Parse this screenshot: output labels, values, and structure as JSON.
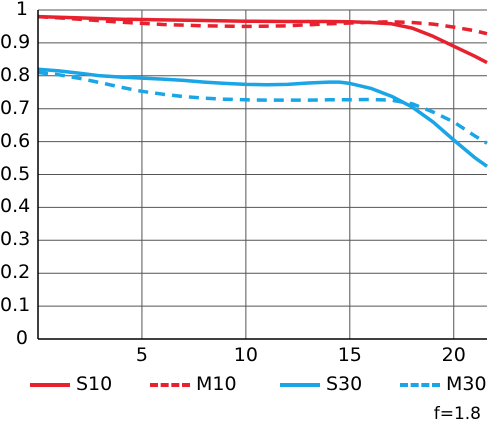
{
  "chart_data": {
    "type": "line",
    "xlim": [
      0,
      21.6
    ],
    "ylim": [
      0,
      1
    ],
    "grid": true,
    "legend_position": "bottom",
    "x_ticks": [
      "5",
      "10",
      "15",
      "20"
    ],
    "y_ticks": [
      "0",
      "0.1",
      "0.2",
      "0.3",
      "0.4",
      "0.5",
      "0.6",
      "0.7",
      "0.8",
      "0.9",
      "1"
    ],
    "series": [
      {
        "name": "S10",
        "color": "#e8212f",
        "style": "solid",
        "points": [
          [
            0,
            0.98
          ],
          [
            2,
            0.976
          ],
          [
            4,
            0.972
          ],
          [
            6,
            0.97
          ],
          [
            8,
            0.968
          ],
          [
            10,
            0.966
          ],
          [
            12,
            0.965
          ],
          [
            14,
            0.965
          ],
          [
            15,
            0.964
          ],
          [
            16,
            0.962
          ],
          [
            17,
            0.958
          ],
          [
            18,
            0.945
          ],
          [
            19,
            0.92
          ],
          [
            20,
            0.89
          ],
          [
            21,
            0.86
          ],
          [
            21.6,
            0.84
          ]
        ]
      },
      {
        "name": "M10",
        "color": "#e8212f",
        "style": "dashed",
        "points": [
          [
            0,
            0.98
          ],
          [
            2,
            0.972
          ],
          [
            4,
            0.963
          ],
          [
            6,
            0.956
          ],
          [
            8,
            0.952
          ],
          [
            10,
            0.95
          ],
          [
            12,
            0.952
          ],
          [
            14,
            0.958
          ],
          [
            16,
            0.963
          ],
          [
            17,
            0.964
          ],
          [
            18,
            0.962
          ],
          [
            19,
            0.957
          ],
          [
            20,
            0.948
          ],
          [
            21,
            0.937
          ],
          [
            21.6,
            0.928
          ]
        ]
      },
      {
        "name": "S30",
        "color": "#1aa5e6",
        "style": "solid",
        "points": [
          [
            0,
            0.82
          ],
          [
            1,
            0.815
          ],
          [
            2,
            0.808
          ],
          [
            3,
            0.8
          ],
          [
            4,
            0.796
          ],
          [
            5,
            0.793
          ],
          [
            6,
            0.79
          ],
          [
            7,
            0.786
          ],
          [
            8,
            0.781
          ],
          [
            9,
            0.777
          ],
          [
            10,
            0.774
          ],
          [
            11,
            0.773
          ],
          [
            12,
            0.774
          ],
          [
            13,
            0.778
          ],
          [
            14,
            0.781
          ],
          [
            14.5,
            0.781
          ],
          [
            15,
            0.777
          ],
          [
            16,
            0.762
          ],
          [
            17,
            0.738
          ],
          [
            18,
            0.705
          ],
          [
            19,
            0.66
          ],
          [
            20,
            0.605
          ],
          [
            21,
            0.552
          ],
          [
            21.6,
            0.525
          ]
        ]
      },
      {
        "name": "M30",
        "color": "#1aa5e6",
        "style": "dashed",
        "points": [
          [
            0,
            0.81
          ],
          [
            1,
            0.803
          ],
          [
            2,
            0.792
          ],
          [
            3,
            0.779
          ],
          [
            4,
            0.765
          ],
          [
            5,
            0.753
          ],
          [
            6,
            0.744
          ],
          [
            7,
            0.737
          ],
          [
            8,
            0.732
          ],
          [
            9,
            0.729
          ],
          [
            10,
            0.727
          ],
          [
            11,
            0.726
          ],
          [
            12,
            0.726
          ],
          [
            13,
            0.726
          ],
          [
            14,
            0.727
          ],
          [
            15,
            0.727
          ],
          [
            16,
            0.728
          ],
          [
            17,
            0.726
          ],
          [
            18,
            0.715
          ],
          [
            19,
            0.69
          ],
          [
            20,
            0.66
          ],
          [
            21,
            0.618
          ],
          [
            21.6,
            0.595
          ]
        ]
      }
    ]
  },
  "note": "f=1.8"
}
